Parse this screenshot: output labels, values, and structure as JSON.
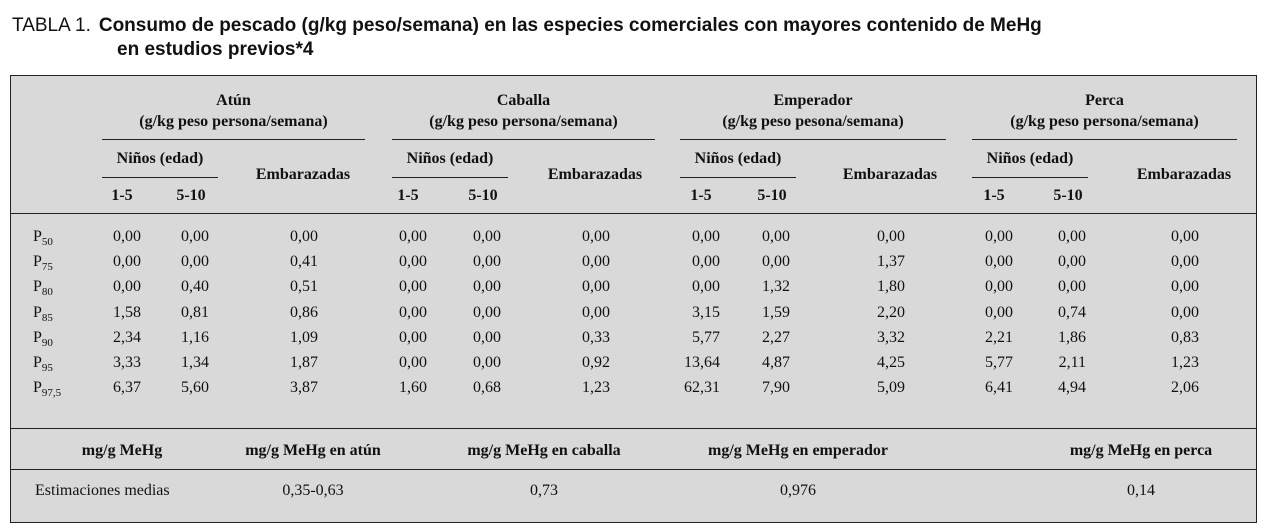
{
  "title": {
    "label": "TABLA 1.",
    "line1": "Consumo de pescado (g/kg peso/semana) en las especies comerciales con mayores contenido de MeHg",
    "line2": "en estudios previos*4"
  },
  "groups": [
    {
      "name": "Atún",
      "unit": "(g/kg peso persona/semana)"
    },
    {
      "name": "Caballa",
      "unit": "(g/kg peso persona/semana)"
    },
    {
      "name": "Emperador",
      "unit": "(g/kg peso pesona/semana)"
    },
    {
      "name": "Perca",
      "unit": "(g/kg peso persona/semana)"
    }
  ],
  "subheaders": {
    "children": "Niños (edad)",
    "age1": "1-5",
    "age2": "5-10",
    "pregnant": "Embarazadas"
  },
  "rows": [
    {
      "p": "P",
      "sub": "50",
      "values": [
        "0,00",
        "0,00",
        "0,00",
        "0,00",
        "0,00",
        "0,00",
        "0,00",
        "0,00",
        "0,00",
        "0,00",
        "0,00",
        "0,00"
      ]
    },
    {
      "p": "P",
      "sub": "75",
      "values": [
        "0,00",
        "0,00",
        "0,41",
        "0,00",
        "0,00",
        "0,00",
        "0,00",
        "0,00",
        "1,37",
        "0,00",
        "0,00",
        "0,00"
      ]
    },
    {
      "p": "P",
      "sub": "80",
      "values": [
        "0,00",
        "0,40",
        "0,51",
        "0,00",
        "0,00",
        "0,00",
        "0,00",
        "1,32",
        "1,80",
        "0,00",
        "0,00",
        "0,00"
      ]
    },
    {
      "p": "P",
      "sub": "85",
      "values": [
        "1,58",
        "0,81",
        "0,86",
        "0,00",
        "0,00",
        "0,00",
        "3,15",
        "1,59",
        "2,20",
        "0,00",
        "0,74",
        "0,00"
      ]
    },
    {
      "p": "P",
      "sub": "90",
      "values": [
        "2,34",
        "1,16",
        "1,09",
        "0,00",
        "0,00",
        "0,33",
        "5,77",
        "2,27",
        "3,32",
        "2,21",
        "1,86",
        "0,83"
      ]
    },
    {
      "p": "P",
      "sub": "95",
      "values": [
        "3,33",
        "1,34",
        "1,87",
        "0,00",
        "0,00",
        "0,92",
        "13,64",
        "4,87",
        "4,25",
        "5,77",
        "2,11",
        "1,23"
      ]
    },
    {
      "p": "P",
      "sub": "97,5",
      "values": [
        "6,37",
        "5,60",
        "3,87",
        "1,60",
        "0,68",
        "1,23",
        "62,31",
        "7,90",
        "5,09",
        "6,41",
        "4,94",
        "2,06"
      ]
    }
  ],
  "mehg": {
    "headers": [
      "mg/g MeHg",
      "mg/g MeHg en atún",
      "mg/g MeHg en caballa",
      "mg/g MeHg en emperador",
      "mg/g MeHg en perca"
    ],
    "row_label": "Estimaciones medias",
    "values": [
      "0,35-0,63",
      "0,73",
      "0,976",
      "0,14"
    ]
  }
}
